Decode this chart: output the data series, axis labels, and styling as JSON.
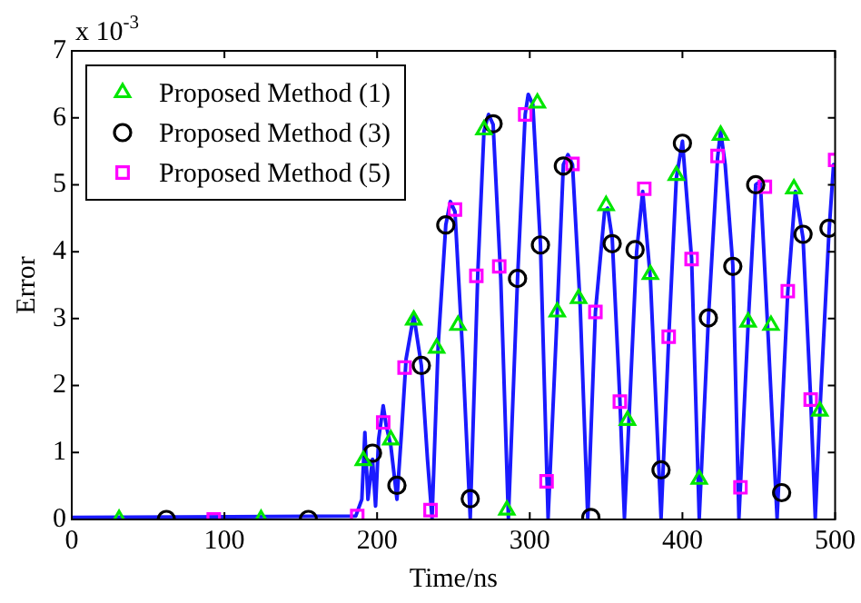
{
  "chart_data": {
    "type": "scatter",
    "xlabel": "Time/ns",
    "ylabel": "Error",
    "annotations": [
      "x 10$^{-3}$"
    ],
    "xlim": [
      0,
      500
    ],
    "xticks": [
      0,
      100,
      200,
      300,
      400,
      500
    ],
    "ylim": [
      0,
      7
    ],
    "yticks": [
      0,
      1,
      2,
      3,
      4,
      5,
      6,
      7
    ],
    "grid": false,
    "legend": "top left",
    "series": [
      {
        "type": "line",
        "color": "#1a1aff",
        "marker": "none",
        "line_style": "solid",
        "x": [
          0,
          186,
          190,
          192,
          194,
          197,
          199,
          201,
          204,
          206,
          209,
          213,
          216,
          219,
          224,
          229,
          233,
          236,
          240,
          245,
          248,
          251,
          256,
          261,
          266,
          270,
          273,
          276,
          281,
          286,
          292,
          297,
          299,
          302,
          307,
          312,
          318,
          322,
          325,
          328,
          333,
          338,
          343,
          349,
          351,
          354,
          359,
          362,
          365,
          370,
          374,
          379,
          386,
          391,
          396,
          400,
          406,
          411,
          417,
          423,
          425,
          428,
          433,
          437,
          443,
          448,
          451,
          456,
          462,
          469,
          474,
          479,
          484,
          487,
          490,
          496,
          499,
          500
        ],
        "values": [
          0.03,
          0.05,
          0.3,
          1.3,
          0.3,
          0.9,
          0.2,
          1.2,
          1.7,
          1.4,
          1.1,
          0.3,
          1.3,
          2.4,
          3.05,
          2.3,
          0.9,
          0.02,
          2.6,
          4.4,
          4.75,
          4.6,
          2.5,
          0.02,
          3.7,
          5.8,
          6.05,
          5.9,
          3.6,
          0.02,
          3.6,
          6.05,
          6.35,
          6.2,
          4.1,
          0.02,
          3.1,
          5.3,
          5.45,
          5.3,
          3.2,
          0.02,
          3.1,
          4.6,
          4.65,
          4.2,
          1.8,
          0.02,
          1.5,
          4.0,
          4.9,
          3.6,
          0.02,
          2.7,
          5.1,
          5.65,
          3.9,
          0.02,
          3.0,
          5.4,
          5.8,
          5.3,
          3.8,
          0.02,
          2.9,
          5.0,
          5.05,
          2.8,
          0.02,
          3.4,
          4.9,
          4.2,
          1.8,
          0.02,
          1.6,
          4.3,
          5.3,
          5.2
        ]
      },
      {
        "type": "scatter",
        "name": "Proposed Method (1)",
        "color": "#00e600",
        "marker": "triangle",
        "x": [
          31,
          124,
          191,
          209,
          224,
          239,
          253,
          270,
          285,
          305,
          318,
          332,
          350,
          364,
          379,
          396,
          411,
          425,
          443,
          458,
          473,
          490
        ],
        "values": [
          0,
          0,
          0.88,
          1.19,
          2.98,
          2.56,
          2.9,
          5.82,
          0.14,
          6.22,
          3.1,
          3.3,
          4.69,
          1.48,
          3.66,
          5.14,
          0.6,
          5.74,
          2.95,
          2.9,
          4.94,
          1.62
        ]
      },
      {
        "type": "scatter",
        "name": "Proposed Method (3)",
        "color": "#000000",
        "marker": "circle",
        "x": [
          62,
          155,
          197,
          213,
          229,
          245,
          261,
          276,
          292,
          307,
          322,
          340,
          354,
          369,
          386,
          400,
          417,
          433,
          448,
          465,
          479,
          496
        ],
        "values": [
          0,
          0,
          0.99,
          0.51,
          2.3,
          4.4,
          0.31,
          5.91,
          3.6,
          4.1,
          5.28,
          0.03,
          4.12,
          4.03,
          0.74,
          5.62,
          3.01,
          3.78,
          5.0,
          0.4,
          4.26,
          4.35
        ]
      },
      {
        "type": "scatter",
        "name": "Proposed Method (5)",
        "color": "#ff00ff",
        "marker": "square",
        "x": [
          93,
          187,
          204,
          218,
          235,
          251,
          265,
          280,
          297,
          311,
          328,
          343,
          359,
          375,
          391,
          406,
          423,
          438,
          454,
          469,
          484,
          500
        ],
        "values": [
          0,
          0.05,
          1.45,
          2.27,
          0.14,
          4.63,
          3.64,
          3.78,
          6.05,
          0.57,
          5.31,
          3.1,
          1.76,
          4.94,
          2.73,
          3.89,
          5.43,
          0.48,
          4.97,
          3.41,
          1.79,
          5.37
        ]
      }
    ]
  }
}
